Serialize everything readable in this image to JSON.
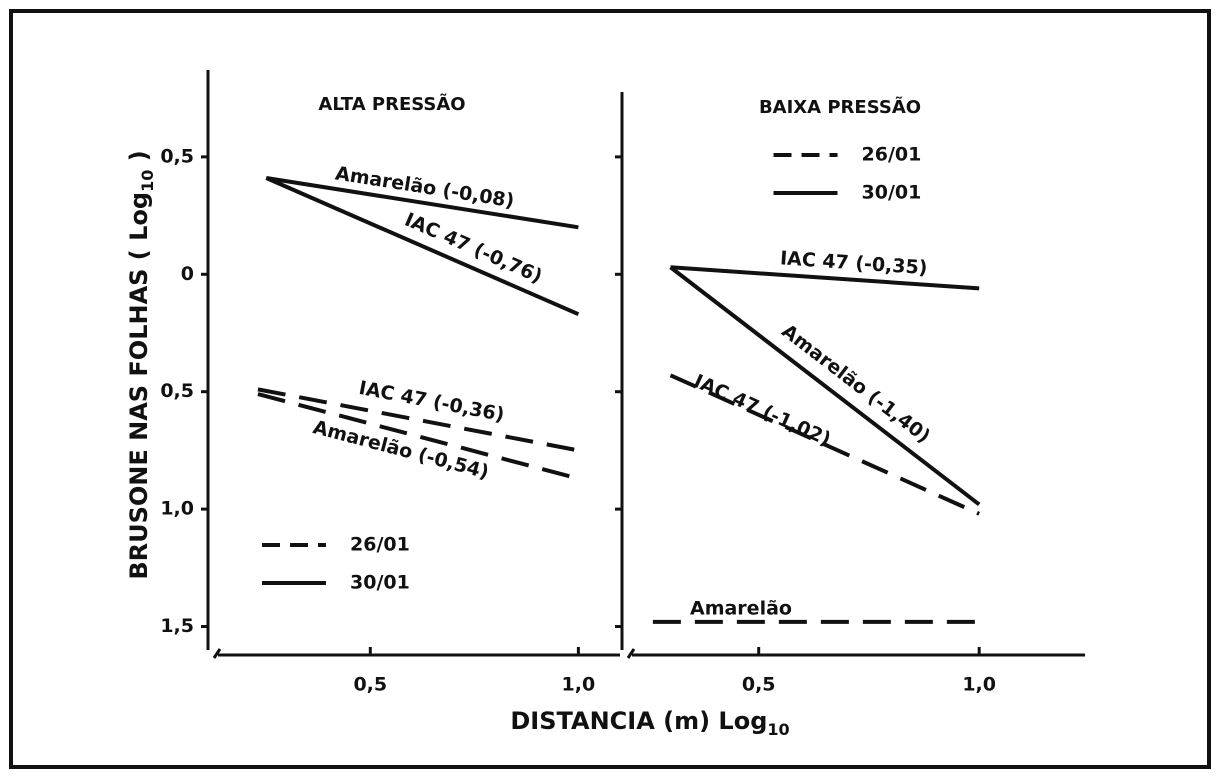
{
  "axis_labels": {
    "x": [
      "DISTANCIA (m) Log",
      "10"
    ],
    "y": [
      "BRUSONE NAS FOLHAS ( Log",
      "10",
      " )"
    ]
  },
  "chart_data": [
    {
      "type": "line",
      "title": "ALTA PRESSÃO",
      "xlim": [
        0.11,
        1.1
      ],
      "ylim": [
        -1.6,
        0.87
      ],
      "xticks": [
        {
          "value": 0.5,
          "label": "0,5"
        },
        {
          "value": 1.0,
          "label": "1,0"
        }
      ],
      "yticks": [
        {
          "value": 0.5,
          "label": "0,5"
        },
        0,
        {
          "value": -0.5,
          "label": "0,5"
        },
        {
          "value": -1.0,
          "label": "1,0"
        },
        {
          "value": -1.5,
          "label": "1,5"
        }
      ],
      "show_ytick_labels": true,
      "legend": "lower left",
      "legend_entries": [
        {
          "label": "26/01",
          "dashed": true
        },
        {
          "label": "30/01",
          "dashed": false
        }
      ],
      "series": [
        {
          "name": "Amarelão (-0,08)",
          "dashed": false,
          "color": "#111",
          "x": [
            0.25,
            1.0
          ],
          "values": [
            0.41,
            0.2
          ]
        },
        {
          "name": "IAC 47 (-0,76)",
          "dashed": false,
          "color": "#111",
          "x": [
            0.25,
            1.0
          ],
          "values": [
            0.41,
            -0.17
          ]
        },
        {
          "name": "IAC 47 (-0,36)",
          "dashed": true,
          "color": "#111",
          "x": [
            0.23,
            1.0
          ],
          "values": [
            -0.49,
            -0.75
          ]
        },
        {
          "name": "Amarelão (-0,54)",
          "dashed": true,
          "color": "#111",
          "x": [
            0.23,
            1.0
          ],
          "values": [
            -0.51,
            -0.87
          ]
        }
      ]
    },
    {
      "type": "line",
      "title": "BAIXA PRESSÃO",
      "xlim": [
        0.19,
        1.24
      ],
      "ylim": [
        -1.6,
        0.87
      ],
      "xticks": [
        {
          "value": 0.5,
          "label": "0,5"
        },
        {
          "value": 1.0,
          "label": "1,0"
        }
      ],
      "yticks": [
        0.5,
        0,
        -0.5,
        -1.0,
        -1.5
      ],
      "show_ytick_labels": false,
      "legend": "upper center",
      "legend_entries": [
        {
          "label": "26/01",
          "dashed": true
        },
        {
          "label": "30/01",
          "dashed": false
        }
      ],
      "series": [
        {
          "name": "IAC 47 (-0,35)",
          "dashed": false,
          "color": "#111",
          "x": [
            0.3,
            1.0
          ],
          "values": [
            0.03,
            -0.06
          ]
        },
        {
          "name": "Amarelão (-1,40)",
          "dashed": false,
          "color": "#111",
          "x": [
            0.3,
            1.0
          ],
          "values": [
            0.03,
            -0.98
          ]
        },
        {
          "name": "IAC 47 (-1,02)",
          "dashed": true,
          "color": "#111",
          "x": [
            0.3,
            1.0
          ],
          "values": [
            -0.43,
            -1.02
          ]
        },
        {
          "name": "Amarelão",
          "dashed": true,
          "color": "#111",
          "x": [
            0.26,
            1.0
          ],
          "values": [
            -1.48,
            -1.48
          ]
        }
      ]
    }
  ]
}
